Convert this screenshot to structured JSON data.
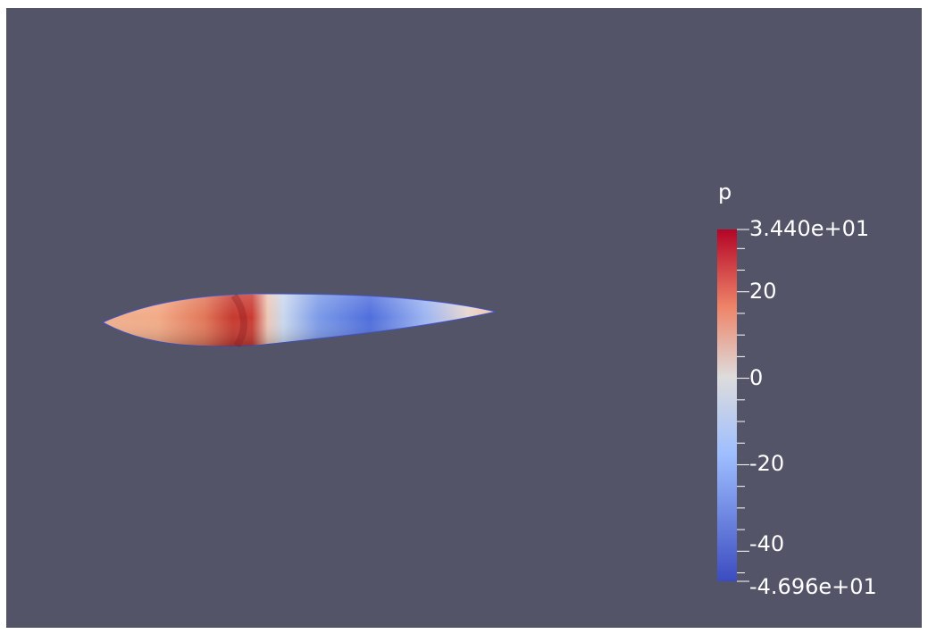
{
  "viewport": {
    "background_color": "#535468"
  },
  "object": {
    "name": "elongated-body",
    "coloring": "p"
  },
  "colorbar": {
    "title": "p",
    "max_label": "3.440e+01",
    "min_label": "-4.696e+01",
    "max": 34.4,
    "min": -46.96,
    "ticks": [
      {
        "value": 20,
        "label": "20"
      },
      {
        "value": 0,
        "label": "0"
      },
      {
        "value": -20,
        "label": "-20"
      },
      {
        "value": -40,
        "label": "-40"
      }
    ],
    "colors": {
      "high": "#b40426",
      "mid": "#dddcdc",
      "low": "#3b4cc0"
    }
  }
}
